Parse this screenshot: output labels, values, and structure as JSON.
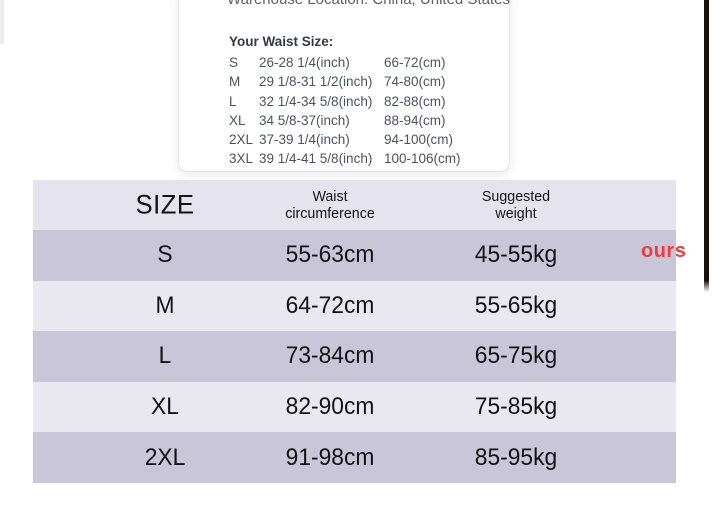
{
  "popup": {
    "top_line": "Warehouse Location: China, United States",
    "waist_title": "Your Waist Size:",
    "rows": [
      {
        "size": "S",
        "inch": "26-28 1/4(inch)",
        "cm": "66-72(cm)"
      },
      {
        "size": "M",
        "inch": "29 1/8-31 1/2(inch)",
        "cm": "74-80(cm)"
      },
      {
        "size": "L",
        "inch": "32 1/4-34 5/8(inch)",
        "cm": "82-88(cm)"
      },
      {
        "size": "XL",
        "inch": "34 5/8-37(inch)",
        "cm": "88-94(cm)"
      },
      {
        "size": "2XL",
        "inch": "37-39 1/4(inch)",
        "cm": "94-100(cm)"
      },
      {
        "size": "3XL",
        "inch": "39 1/4-41 5/8(inch)",
        "cm": "100-106(cm)"
      }
    ]
  },
  "size_table": {
    "header": {
      "size": "SIZE",
      "waist": "Waist\ncircumference",
      "weight": "Suggested\nweight"
    },
    "rows": [
      {
        "size": "S",
        "waist": "55-63cm",
        "weight": "45-55kg"
      },
      {
        "size": "M",
        "waist": "64-72cm",
        "weight": "55-65kg"
      },
      {
        "size": "L",
        "waist": "73-84cm",
        "weight": "65-75kg"
      },
      {
        "size": "XL",
        "waist": "82-90cm",
        "weight": "75-85kg"
      },
      {
        "size": "2XL",
        "waist": "91-98cm",
        "weight": "85-95kg"
      }
    ]
  },
  "annotation": {
    "label": "ours",
    "color": "#f23b3b"
  },
  "colors": {
    "header_row_bg": "#e5e3ed",
    "dark_row_bg": "#c9c6d9",
    "light_row_bg": "#e9e7f0",
    "popup_text": "#4b5263",
    "table_text": "#121212",
    "edge_bar": "#17110c"
  }
}
